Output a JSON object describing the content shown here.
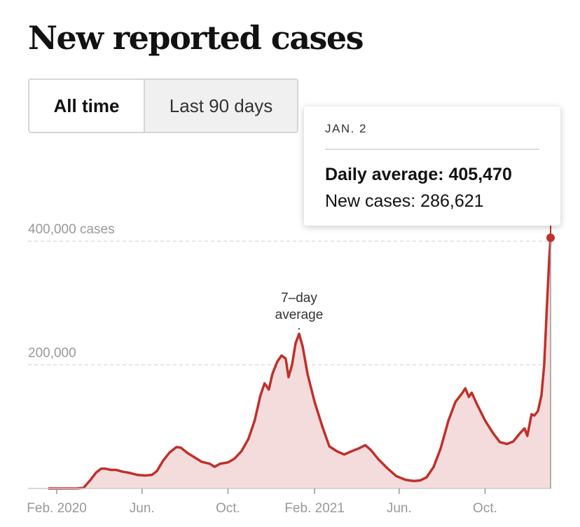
{
  "title": "New reported cases",
  "toggle": {
    "options": [
      {
        "label": "All time",
        "selected": true
      },
      {
        "label": "Last 90 days",
        "selected": false
      }
    ]
  },
  "tooltip": {
    "date": "JAN. 2",
    "average_label": "Daily average:",
    "average_value": "405,470",
    "cases_label": "New cases:",
    "cases_value": "286,621"
  },
  "annotation": {
    "line1": "7–day",
    "line2": "average"
  },
  "colors": {
    "line": "#c0302a",
    "area": "#f5dcdc",
    "grid": "#dddddd",
    "axis_text": "#999999"
  },
  "chart_data": {
    "type": "area",
    "title": "New reported cases",
    "ylabel": "",
    "ylim": [
      0,
      450000
    ],
    "yticks": [
      {
        "value": 200000,
        "label": "200,000"
      },
      {
        "value": 400000,
        "label": "400,000 cases"
      }
    ],
    "xticks": [
      {
        "date": "2020-02-01",
        "label": "Feb. 2020"
      },
      {
        "date": "2020-06-01",
        "label": "Jun."
      },
      {
        "date": "2020-10-01",
        "label": "Oct."
      },
      {
        "date": "2021-02-01",
        "label": "Feb. 2021"
      },
      {
        "date": "2021-06-01",
        "label": "Jun."
      },
      {
        "date": "2021-10-01",
        "label": "Oct."
      }
    ],
    "xlim": [
      "2020-01-21",
      "2022-01-02"
    ],
    "series": [
      {
        "name": "7–day average",
        "points": [
          [
            "2020-01-21",
            0
          ],
          [
            "2020-03-01",
            100
          ],
          [
            "2020-03-10",
            1000
          ],
          [
            "2020-03-20",
            14000
          ],
          [
            "2020-03-28",
            26000
          ],
          [
            "2020-04-04",
            32000
          ],
          [
            "2020-04-10",
            32000
          ],
          [
            "2020-04-18",
            30000
          ],
          [
            "2020-04-25",
            30000
          ],
          [
            "2020-05-05",
            27000
          ],
          [
            "2020-05-15",
            25000
          ],
          [
            "2020-05-25",
            22000
          ],
          [
            "2020-06-05",
            21000
          ],
          [
            "2020-06-15",
            22000
          ],
          [
            "2020-06-22",
            28000
          ],
          [
            "2020-07-01",
            45000
          ],
          [
            "2020-07-10",
            58000
          ],
          [
            "2020-07-20",
            67000
          ],
          [
            "2020-07-26",
            66000
          ],
          [
            "2020-08-05",
            57000
          ],
          [
            "2020-08-15",
            50000
          ],
          [
            "2020-08-25",
            43000
          ],
          [
            "2020-09-05",
            40000
          ],
          [
            "2020-09-12",
            35000
          ],
          [
            "2020-09-20",
            40000
          ],
          [
            "2020-10-01",
            42000
          ],
          [
            "2020-10-10",
            48000
          ],
          [
            "2020-10-20",
            60000
          ],
          [
            "2020-10-30",
            80000
          ],
          [
            "2020-11-08",
            110000
          ],
          [
            "2020-11-16",
            150000
          ],
          [
            "2020-11-22",
            170000
          ],
          [
            "2020-11-28",
            160000
          ],
          [
            "2020-12-03",
            185000
          ],
          [
            "2020-12-10",
            205000
          ],
          [
            "2020-12-16",
            215000
          ],
          [
            "2020-12-22",
            210000
          ],
          [
            "2020-12-26",
            180000
          ],
          [
            "2020-12-31",
            200000
          ],
          [
            "2021-01-05",
            235000
          ],
          [
            "2021-01-10",
            250000
          ],
          [
            "2021-01-15",
            230000
          ],
          [
            "2021-01-22",
            185000
          ],
          [
            "2021-02-01",
            140000
          ],
          [
            "2021-02-12",
            100000
          ],
          [
            "2021-02-22",
            68000
          ],
          [
            "2021-03-05",
            60000
          ],
          [
            "2021-03-15",
            55000
          ],
          [
            "2021-03-25",
            60000
          ],
          [
            "2021-04-05",
            65000
          ],
          [
            "2021-04-14",
            70000
          ],
          [
            "2021-04-22",
            62000
          ],
          [
            "2021-05-02",
            48000
          ],
          [
            "2021-05-15",
            33000
          ],
          [
            "2021-05-28",
            20000
          ],
          [
            "2021-06-10",
            14000
          ],
          [
            "2021-06-22",
            12000
          ],
          [
            "2021-07-01",
            13000
          ],
          [
            "2021-07-10",
            18000
          ],
          [
            "2021-07-20",
            35000
          ],
          [
            "2021-07-30",
            65000
          ],
          [
            "2021-08-10",
            110000
          ],
          [
            "2021-08-20",
            140000
          ],
          [
            "2021-08-30",
            155000
          ],
          [
            "2021-09-03",
            162000
          ],
          [
            "2021-09-08",
            148000
          ],
          [
            "2021-09-12",
            155000
          ],
          [
            "2021-09-20",
            135000
          ],
          [
            "2021-10-01",
            110000
          ],
          [
            "2021-10-12",
            90000
          ],
          [
            "2021-10-22",
            75000
          ],
          [
            "2021-11-01",
            72000
          ],
          [
            "2021-11-10",
            76000
          ],
          [
            "2021-11-20",
            90000
          ],
          [
            "2021-11-26",
            97000
          ],
          [
            "2021-11-30",
            85000
          ],
          [
            "2021-12-06",
            120000
          ],
          [
            "2021-12-10",
            118000
          ],
          [
            "2021-12-15",
            125000
          ],
          [
            "2021-12-20",
            150000
          ],
          [
            "2021-12-24",
            200000
          ],
          [
            "2021-12-28",
            300000
          ],
          [
            "2021-12-31",
            370000
          ],
          [
            "2022-01-02",
            405470
          ]
        ]
      }
    ],
    "highlight": {
      "date": "2022-01-02",
      "value": 405470
    },
    "grid": true,
    "legend": "none"
  }
}
